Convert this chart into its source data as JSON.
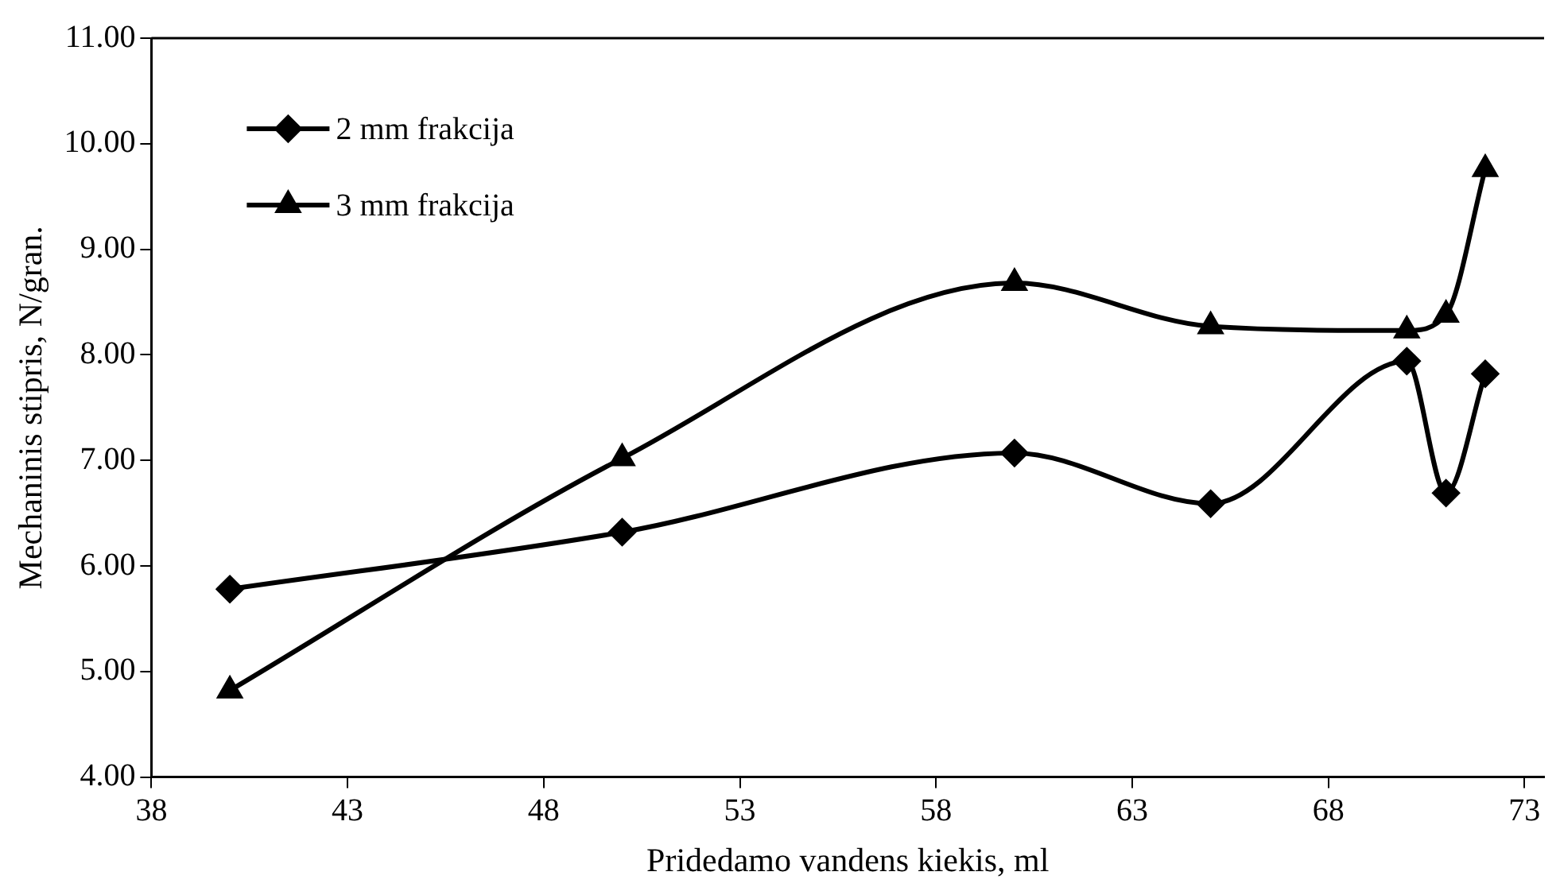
{
  "chart_data": {
    "type": "line",
    "xlabel": "Pridedamo vandens kiekis, ml",
    "ylabel": "Mechaninis stipris, N/gran.",
    "x": [
      40,
      50,
      60,
      65,
      70,
      71,
      72
    ],
    "series": [
      {
        "name": "2 mm frakcija",
        "color": "#000000",
        "marker": "diamond",
        "values": [
          5.78,
          6.32,
          7.07,
          6.59,
          7.94,
          6.69,
          7.82
        ]
      },
      {
        "name": "3 mm frakcija",
        "color": "#000000",
        "marker": "triangle",
        "values": [
          4.82,
          7.02,
          8.68,
          8.27,
          8.23,
          8.38,
          9.76
        ]
      }
    ],
    "xlim": [
      38,
      73.5
    ],
    "xticks": [
      38,
      43,
      48,
      53,
      58,
      63,
      68,
      73
    ],
    "ylim": [
      4,
      11
    ],
    "yticks": [
      {
        "value": 4,
        "label": "4.00"
      },
      {
        "value": 5,
        "label": "5.00"
      },
      {
        "value": 6,
        "label": "6.00"
      },
      {
        "value": 7,
        "label": "7.00"
      },
      {
        "value": 8,
        "label": "8.00"
      },
      {
        "value": 9,
        "label": "9.00"
      },
      {
        "value": 10,
        "label": "10.00"
      },
      {
        "value": 11,
        "label": "11.00"
      }
    ],
    "grid": false,
    "legend": "top left",
    "line_style": "solid"
  }
}
